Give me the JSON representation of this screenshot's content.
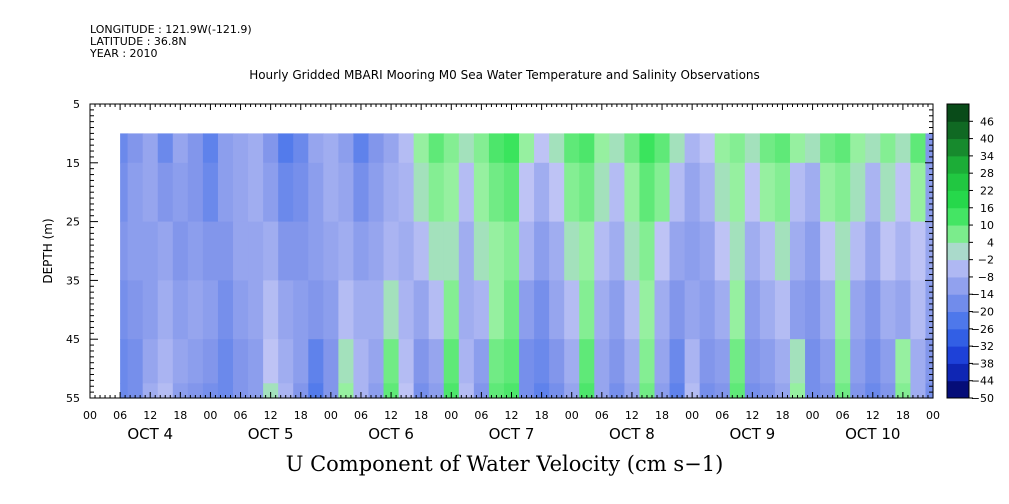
{
  "meta": {
    "longitude": "LONGITUDE : 121.9W(-121.9)",
    "latitude": "LATITUDE : 36.8N",
    "year": "YEAR : 2010"
  },
  "chart_data": {
    "type": "heatmap",
    "title": "Hourly Gridded MBARI Mooring M0 Sea Water Temperature and Salinity Observations",
    "xlabel": "",
    "ylabel": "DEPTH (m)",
    "main_label": "U Component of Water Velocity (cm s−1)",
    "y_ticks": [
      5,
      15,
      25,
      35,
      45,
      55
    ],
    "y_range": [
      5,
      55
    ],
    "y_inverted": true,
    "data_depth_range": [
      10,
      55
    ],
    "x_range_hours": [
      0,
      168
    ],
    "data_start_hour": 6,
    "data_end_hour": 168,
    "x_hour_ticks": [
      "00",
      "06",
      "12",
      "18",
      "00",
      "06",
      "12",
      "18",
      "00",
      "06",
      "12",
      "18",
      "00",
      "06",
      "12",
      "18",
      "00",
      "06",
      "12",
      "18",
      "00",
      "06",
      "12",
      "18",
      "00",
      "06",
      "12",
      "18",
      "00"
    ],
    "day_labels": [
      "OCT 4",
      "OCT 5",
      "OCT 6",
      "OCT 7",
      "OCT 8",
      "OCT 9",
      "OCT 10"
    ],
    "colorbar": {
      "levels": [
        "46",
        "40",
        "34",
        "28",
        "22",
        "16",
        "10",
        "4",
        "−2",
        "−8",
        "−14",
        "−20",
        "−26",
        "−32",
        "−38",
        "−44",
        "−50"
      ],
      "min": -50,
      "max": 52,
      "step": 6
    },
    "profile_hours": [
      6,
      9,
      12,
      15,
      18,
      21,
      24,
      27,
      30,
      33,
      36,
      39,
      42,
      45,
      48,
      51,
      54,
      57,
      60,
      63,
      66,
      69,
      72,
      75,
      78,
      81,
      84,
      87,
      90,
      93,
      96,
      99,
      102,
      105,
      108,
      111,
      114,
      117,
      120,
      123,
      126,
      129,
      132,
      135,
      138,
      141,
      144,
      147,
      150,
      153,
      156,
      159,
      162,
      165,
      168
    ],
    "profile_depths": [
      10,
      20,
      30,
      40,
      50,
      55
    ],
    "values_by_depth": [
      [
        -18,
        -14,
        -10,
        -18,
        -10,
        -14,
        -20,
        -12,
        -10,
        -8,
        -14,
        -22,
        -18,
        -10,
        -8,
        -12,
        -20,
        -14,
        -10,
        -4,
        4,
        10,
        6,
        2,
        6,
        12,
        14,
        4,
        -2,
        2,
        10,
        12,
        4,
        2,
        8,
        14,
        10,
        2,
        -6,
        -2,
        4,
        6,
        2,
        8,
        10,
        4,
        2,
        8,
        10,
        4,
        2,
        6,
        2,
        10,
        -14
      ],
      [
        -16,
        -12,
        -10,
        -14,
        -12,
        -14,
        -18,
        -12,
        -10,
        -8,
        -12,
        -18,
        -16,
        -12,
        -8,
        -10,
        -16,
        -12,
        -8,
        -6,
        2,
        6,
        4,
        -4,
        4,
        8,
        10,
        -2,
        -8,
        -2,
        6,
        8,
        2,
        -4,
        4,
        10,
        6,
        -4,
        -10,
        -6,
        2,
        4,
        -2,
        4,
        6,
        -4,
        -8,
        4,
        6,
        2,
        -6,
        2,
        -2,
        4,
        -12
      ],
      [
        -14,
        -12,
        -12,
        -10,
        -14,
        -12,
        -14,
        -14,
        -10,
        -10,
        -8,
        -14,
        -14,
        -12,
        -10,
        -8,
        -12,
        -10,
        -6,
        -8,
        -4,
        2,
        2,
        -8,
        2,
        4,
        6,
        -6,
        -12,
        -8,
        2,
        4,
        -4,
        -8,
        2,
        6,
        -2,
        -10,
        -12,
        -10,
        -2,
        2,
        -8,
        -4,
        2,
        -8,
        -12,
        -2,
        2,
        -4,
        -10,
        -2,
        -6,
        -2,
        -10
      ],
      [
        -16,
        -14,
        -12,
        -8,
        -12,
        -10,
        -12,
        -16,
        -12,
        -10,
        -4,
        -10,
        -12,
        -14,
        -12,
        -4,
        -8,
        -8,
        2,
        -6,
        -10,
        -4,
        6,
        -8,
        -6,
        4,
        8,
        -12,
        -16,
        -10,
        -4,
        6,
        -8,
        -12,
        -4,
        4,
        -8,
        -14,
        -10,
        -12,
        -8,
        4,
        -12,
        -8,
        -4,
        -12,
        -14,
        -8,
        4,
        -10,
        -14,
        -8,
        -10,
        -4,
        -12
      ],
      [
        -18,
        -16,
        -10,
        -6,
        -10,
        -12,
        -14,
        -18,
        -14,
        -12,
        -2,
        -8,
        -12,
        -20,
        -14,
        2,
        -6,
        -10,
        8,
        -4,
        -14,
        -10,
        10,
        -6,
        -12,
        8,
        10,
        -16,
        -18,
        -14,
        -8,
        10,
        -10,
        -14,
        -8,
        6,
        -10,
        -18,
        -6,
        -14,
        -12,
        8,
        -14,
        -12,
        -8,
        2,
        -16,
        -12,
        6,
        -12,
        -16,
        -12,
        4,
        -8,
        -14
      ],
      [
        -18,
        -16,
        -8,
        -4,
        -12,
        -14,
        -16,
        -18,
        -14,
        -12,
        2,
        -6,
        -14,
        -22,
        -14,
        4,
        -6,
        -12,
        10,
        -2,
        -16,
        -12,
        12,
        -4,
        -14,
        10,
        12,
        -16,
        -20,
        -16,
        -10,
        12,
        -10,
        -16,
        -10,
        8,
        -12,
        -20,
        -4,
        -16,
        -14,
        10,
        -16,
        -14,
        -10,
        4,
        -16,
        -14,
        8,
        -14,
        -18,
        -14,
        6,
        -8,
        -16
      ]
    ]
  }
}
